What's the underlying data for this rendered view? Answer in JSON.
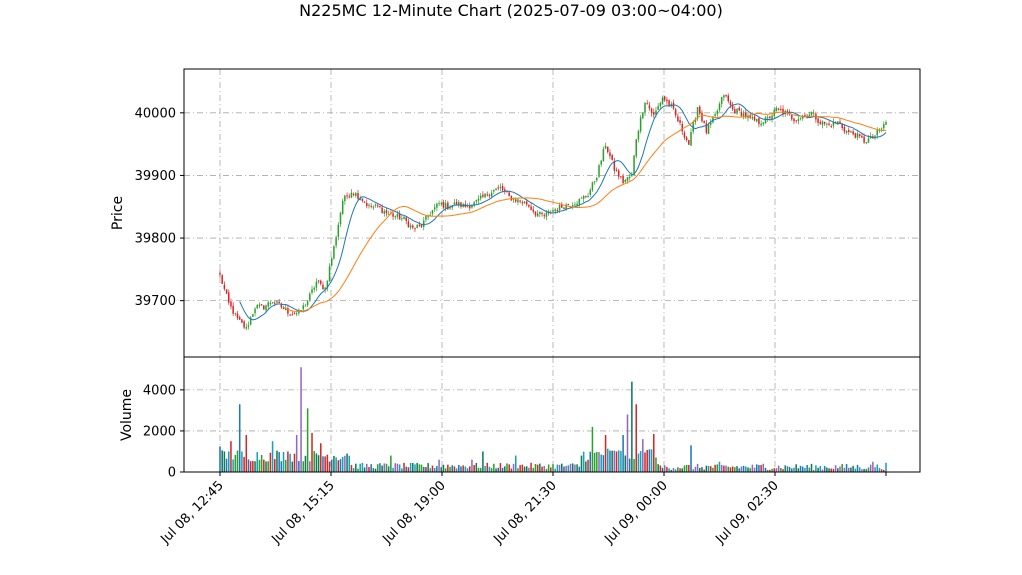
{
  "chart_data": {
    "type": "candlestick",
    "title": "N225MC 12-Minute Chart (2025-07-09 03:00~04:00)",
    "price_panel": {
      "ylabel": "Price",
      "yticks": [
        39700,
        39800,
        39900,
        40000
      ],
      "ylim": [
        39610,
        40070
      ],
      "grid": true,
      "series": [
        {
          "type": "candlestick",
          "up_color": "#2ca02c",
          "down_color": "#d62728"
        },
        {
          "type": "line",
          "color": "#1f77b4"
        },
        {
          "type": "line",
          "color": "#ff7f0e"
        }
      ]
    },
    "volume_panel": {
      "ylabel": "Volume",
      "yticks": [
        0,
        2000,
        4000
      ],
      "ylim": [
        0,
        5600
      ],
      "grid": true,
      "colors": [
        "#d62728",
        "#1f77b4",
        "#2ca02c",
        "#9467bd",
        "#17a2b8",
        "#0f7a5a"
      ]
    },
    "xticks": [
      "Jul 08, 12:45",
      "Jul 08, 15:15",
      "Jul 08, 19:00",
      "Jul 08, 21:30",
      "Jul 09, 00:00",
      "Jul 09, 02:30"
    ],
    "close_anchors": [
      [
        0,
        39740
      ],
      [
        4,
        39695
      ],
      [
        8,
        39670
      ],
      [
        12,
        39655
      ],
      [
        16,
        39690
      ],
      [
        20,
        39690
      ],
      [
        24,
        39700
      ],
      [
        28,
        39690
      ],
      [
        32,
        39680
      ],
      [
        36,
        39680
      ],
      [
        40,
        39700
      ],
      [
        44,
        39730
      ],
      [
        48,
        39720
      ],
      [
        52,
        39785
      ],
      [
        56,
        39860
      ],
      [
        60,
        39875
      ],
      [
        64,
        39865
      ],
      [
        68,
        39850
      ],
      [
        72,
        39850
      ],
      [
        76,
        39840
      ],
      [
        80,
        39835
      ],
      [
        84,
        39830
      ],
      [
        88,
        39815
      ],
      [
        92,
        39820
      ],
      [
        96,
        39840
      ],
      [
        100,
        39855
      ],
      [
        104,
        39850
      ],
      [
        108,
        39855
      ],
      [
        112,
        39850
      ],
      [
        116,
        39855
      ],
      [
        120,
        39865
      ],
      [
        124,
        39875
      ],
      [
        128,
        39880
      ],
      [
        132,
        39865
      ],
      [
        136,
        39860
      ],
      [
        140,
        39855
      ],
      [
        144,
        39840
      ],
      [
        148,
        39835
      ],
      [
        152,
        39845
      ],
      [
        156,
        39850
      ],
      [
        160,
        39855
      ],
      [
        164,
        39860
      ],
      [
        168,
        39870
      ],
      [
        172,
        39900
      ],
      [
        176,
        39950
      ],
      [
        180,
        39910
      ],
      [
        184,
        39890
      ],
      [
        188,
        39900
      ],
      [
        190,
        39960
      ],
      [
        194,
        40020
      ],
      [
        198,
        39995
      ],
      [
        202,
        40025
      ],
      [
        206,
        40010
      ],
      [
        210,
        39980
      ],
      [
        214,
        39950
      ],
      [
        218,
        40010
      ],
      [
        222,
        39970
      ],
      [
        226,
        39995
      ],
      [
        230,
        40030
      ],
      [
        234,
        40005
      ],
      [
        238,
        40000
      ],
      [
        242,
        39990
      ],
      [
        246,
        39985
      ],
      [
        250,
        39990
      ],
      [
        254,
        40005
      ],
      [
        258,
        40000
      ],
      [
        262,
        39990
      ],
      [
        266,
        39995
      ],
      [
        270,
        40000
      ],
      [
        274,
        39985
      ],
      [
        278,
        39980
      ],
      [
        282,
        39985
      ],
      [
        286,
        39970
      ],
      [
        290,
        39965
      ],
      [
        294,
        39955
      ],
      [
        298,
        39960
      ],
      [
        302,
        39975
      ],
      [
        304,
        39985
      ]
    ],
    "volume_spikes": [
      [
        0,
        1250
      ],
      [
        2,
        1000
      ],
      [
        5,
        1500
      ],
      [
        9,
        3300
      ],
      [
        12,
        1800
      ],
      [
        24,
        1500
      ],
      [
        31,
        1000
      ],
      [
        35,
        1800
      ],
      [
        37,
        5100
      ],
      [
        40,
        3100
      ],
      [
        42,
        1900
      ],
      [
        46,
        1400
      ],
      [
        58,
        900
      ],
      [
        78,
        800
      ],
      [
        100,
        600
      ],
      [
        115,
        600
      ],
      [
        120,
        1000
      ],
      [
        135,
        800
      ],
      [
        165,
        800
      ],
      [
        170,
        2200
      ],
      [
        176,
        1800
      ],
      [
        181,
        1000
      ],
      [
        184,
        1800
      ],
      [
        186,
        2800
      ],
      [
        188,
        4400
      ],
      [
        190,
        3300
      ],
      [
        193,
        1600
      ],
      [
        196,
        1100
      ],
      [
        198,
        1850
      ],
      [
        215,
        1300
      ],
      [
        228,
        500
      ],
      [
        248,
        400
      ],
      [
        265,
        300
      ],
      [
        298,
        500
      ],
      [
        304,
        450
      ]
    ]
  }
}
